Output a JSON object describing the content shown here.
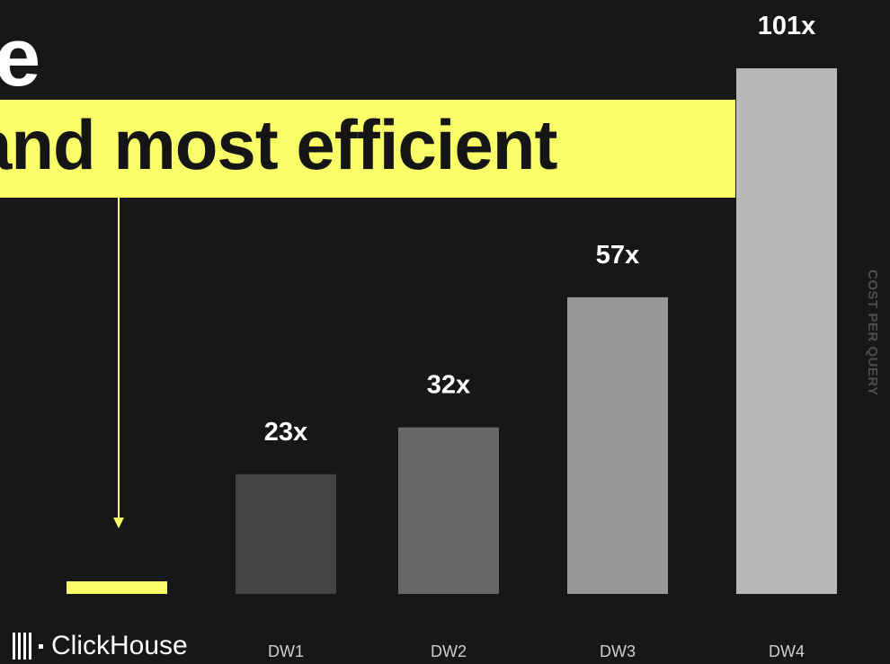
{
  "headline": {
    "top_fragment": "e",
    "main": "and most efficient"
  },
  "side_label": "COST PER QUERY",
  "logo": {
    "text": "ClickHouse"
  },
  "colors": {
    "background": "#171717",
    "accent": "#faff69"
  },
  "chart_data": {
    "type": "bar",
    "categories": [
      "",
      "DW1",
      "DW2",
      "DW3",
      "DW4"
    ],
    "values": [
      1,
      23,
      32,
      57,
      101
    ],
    "value_labels": [
      "",
      "23x",
      "32x",
      "57x",
      "101x"
    ],
    "bar_colors": [
      "#faff69",
      "#444444",
      "#666666",
      "#979797",
      "#b8b8b8"
    ],
    "ylabel": "COST PER QUERY",
    "title": "",
    "xlabel": "",
    "ylim": [
      0,
      101
    ],
    "grid": false,
    "legend": "none"
  }
}
